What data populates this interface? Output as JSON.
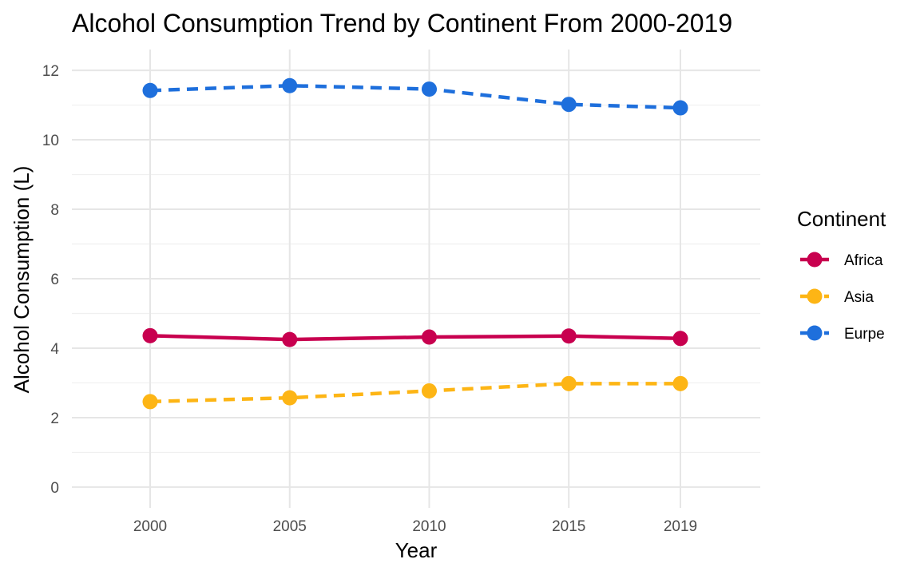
{
  "chart_data": {
    "type": "line",
    "title": "Alcohol Consumption Trend by Continent From 2000-2019",
    "xlabel": "Year",
    "ylabel": "Alcohol Consumption (L)",
    "x": [
      2000,
      2005,
      2010,
      2015,
      2019
    ],
    "x_tick_labels": [
      "2000",
      "2005",
      "2010",
      "2015",
      "2019"
    ],
    "y_ticks": [
      0,
      2,
      4,
      6,
      8,
      10,
      12
    ],
    "y_tick_labels": [
      "0",
      "2",
      "4",
      "6",
      "8",
      "10",
      "12"
    ],
    "ylim": [
      -0.6,
      12.6
    ],
    "grid": true,
    "legend": {
      "title": "Continent",
      "position": "right"
    },
    "series": [
      {
        "name": "Africa",
        "color": "#c8004f",
        "line_style": "solid",
        "values": [
          4.36,
          4.25,
          4.32,
          4.35,
          4.28
        ]
      },
      {
        "name": "Asia",
        "color": "#fdb515",
        "line_style": "dashed",
        "values": [
          2.46,
          2.57,
          2.77,
          2.98,
          2.98
        ]
      },
      {
        "name": "Eurpe",
        "color": "#1e6fdc",
        "line_style": "dashed",
        "values": [
          11.42,
          11.56,
          11.46,
          11.02,
          10.92
        ]
      }
    ]
  }
}
